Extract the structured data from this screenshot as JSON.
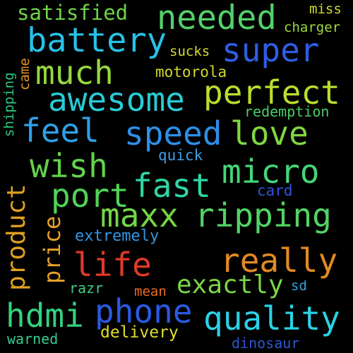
{
  "background": "#000000",
  "words": [
    {
      "text": "satisfied",
      "color": "#6dd54a"
    },
    {
      "text": "needed",
      "color": "#53d06b"
    },
    {
      "text": "miss",
      "color": "#d3dc2c"
    },
    {
      "text": "battery",
      "color": "#26c2e8"
    },
    {
      "text": "charger",
      "color": "#9fd93f"
    },
    {
      "text": "super",
      "color": "#2d5ee6"
    },
    {
      "text": "much",
      "color": "#95d840"
    },
    {
      "text": "sucks",
      "color": "#d4db2e"
    },
    {
      "text": "came",
      "color": "#e79324"
    },
    {
      "text": "shipping",
      "color": "#31c67f"
    },
    {
      "text": "motorola",
      "color": "#d5d72e"
    },
    {
      "text": "awesome",
      "color": "#28cbd5"
    },
    {
      "text": "perfect",
      "color": "#b9de2e"
    },
    {
      "text": "redemption",
      "color": "#4acd65"
    },
    {
      "text": "feel",
      "color": "#2ea0e6"
    },
    {
      "text": "speed",
      "color": "#2d8fe9"
    },
    {
      "text": "love",
      "color": "#7fd640"
    },
    {
      "text": "quick",
      "color": "#3d9fe3"
    },
    {
      "text": "wish",
      "color": "#63d34b"
    },
    {
      "text": "micro",
      "color": "#44d67a"
    },
    {
      "text": "product",
      "color": "#dfa122"
    },
    {
      "text": "fast",
      "color": "#2fd7a6"
    },
    {
      "text": "port",
      "color": "#4fd358"
    },
    {
      "text": "card",
      "color": "#2f54df"
    },
    {
      "text": "maxx",
      "color": "#72d646"
    },
    {
      "text": "ripping",
      "color": "#52d365"
    },
    {
      "text": "price",
      "color": "#e8a02a"
    },
    {
      "text": "extremely",
      "color": "#3496e3"
    },
    {
      "text": "life",
      "color": "#e0392a"
    },
    {
      "text": "really",
      "color": "#e28a22"
    },
    {
      "text": "razr",
      "color": "#3fcc85"
    },
    {
      "text": "exactly",
      "color": "#7bd644"
    },
    {
      "text": "mean",
      "color": "#e86b24"
    },
    {
      "text": "sd",
      "color": "#2ea6e3"
    },
    {
      "text": "hdmi",
      "color": "#31d27f"
    },
    {
      "text": "phone",
      "color": "#2a5ae3"
    },
    {
      "text": "quality",
      "color": "#2ad2e6"
    },
    {
      "text": "delivery",
      "color": "#e1df2c"
    },
    {
      "text": "warned",
      "color": "#36cc93"
    },
    {
      "text": "dinosaur",
      "color": "#2c56cf"
    }
  ]
}
